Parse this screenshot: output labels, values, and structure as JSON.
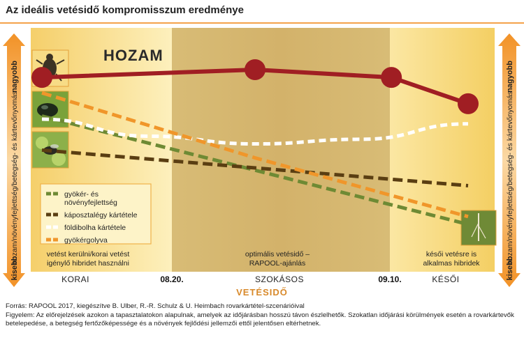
{
  "title": "Az ideális vetésidő kompromisszum eredménye",
  "colors": {
    "yield": "#a01e23",
    "root_growth": "#6e8a34",
    "cabbage_weevil": "#5a3e12",
    "flea_beetle": "#ffffff",
    "clubroot": "#f0962a",
    "band_early": "#fbe9a6",
    "band_optimal": "#dcc07a",
    "band_late": "#f6d97a",
    "arrow": "#f0962a"
  },
  "left_arrow": {
    "top_label": "nagyobb",
    "bottom_label": "kisebb",
    "middle_label": "hozam/növényfejlettség/betegség- és kártevőnyomás"
  },
  "right_arrow": {
    "top_label": "nagyobb",
    "bottom_label": "kisebb",
    "middle_label": "hozam/növényfejlettség/betegség- és kártevőnyomás"
  },
  "chart_data": {
    "type": "line",
    "x_categories": [
      "KORAI",
      "SZOKÁSOS",
      "KÉSŐI"
    ],
    "x_dates": [
      "08.20.",
      "09.10."
    ],
    "x_axis_label": "VETÉSIDŐ",
    "yield_label": "HOZAM",
    "series": [
      {
        "name": "HOZAM",
        "key": "yield",
        "style": "solid-dots",
        "x": [
          0.0,
          0.5,
          0.82,
          1.0
        ],
        "y": [
          0.95,
          1.0,
          0.95,
          0.78
        ]
      },
      {
        "name": "gyökér- és növényfejlettség",
        "key": "root_growth",
        "style": "dashed",
        "x": [
          0.0,
          1.0
        ],
        "y": [
          0.7,
          0.0
        ]
      },
      {
        "name": "káposztalégy kártétele",
        "key": "cabbage_weevil",
        "style": "dashed",
        "x": [
          0.0,
          1.0
        ],
        "y": [
          0.48,
          0.25
        ]
      },
      {
        "name": "földibolha kártétele",
        "key": "flea_beetle",
        "style": "dotted-curve",
        "x": [
          0.0,
          0.25,
          0.5,
          0.75,
          1.0
        ],
        "y": [
          0.68,
          0.57,
          0.52,
          0.55,
          0.65
        ]
      },
      {
        "name": "gyökérgolyva",
        "key": "clubroot",
        "style": "dashed",
        "x": [
          0.0,
          0.5,
          1.0
        ],
        "y": [
          0.85,
          0.43,
          0.05
        ]
      }
    ],
    "legend": [
      {
        "label": "gyökér- és növényfejlettség",
        "key": "root_growth"
      },
      {
        "label": "káposztalégy kártétele",
        "key": "cabbage_weevil"
      },
      {
        "label": "földibolha kártétele",
        "key": "flea_beetle"
      },
      {
        "label": "gyökérgolyva",
        "key": "clubroot"
      }
    ],
    "legend_position": "bottom-left",
    "zone_notes": [
      {
        "text": "vetést kerülni/korai vetést igénylő hibridet használni",
        "lines": [
          "vetést kerülni/korai vetést",
          "igénylő hibridet használni"
        ]
      },
      {
        "text": "optimális vetésidő – RAPOOL-ajánlás",
        "lines": [
          "optimális vetésidő –",
          "RAPOOL-ajánlás"
        ]
      },
      {
        "text": "késői vetésre is alkalmas hibridek",
        "lines": [
          "késői vetésre is",
          "alkalmas hibridek"
        ]
      }
    ],
    "grid": false
  },
  "icons": [
    "weevil-photo-icon",
    "flea-beetle-photo-icon",
    "root-fly-photo-icon",
    "seedling-photo-icon"
  ],
  "footer": {
    "source": "Forrás: RAPOOL 2017, kiegészítve B. Ulber, R.-R. Schulz & U. Heimbach rovarkártétel-szcenárióival",
    "note": "Figyelem: Az előrejelzések azokon a tapasztalatokon alapulnak, amelyek az időjárásban hosszú távon észlelhetők. Szokatlan időjárási körülmények esetén a rovarkártevők betelepedése, a betegség fertőzőképessége és a növények fejlődési jellemzői ettől jelentősen eltérhetnek."
  }
}
